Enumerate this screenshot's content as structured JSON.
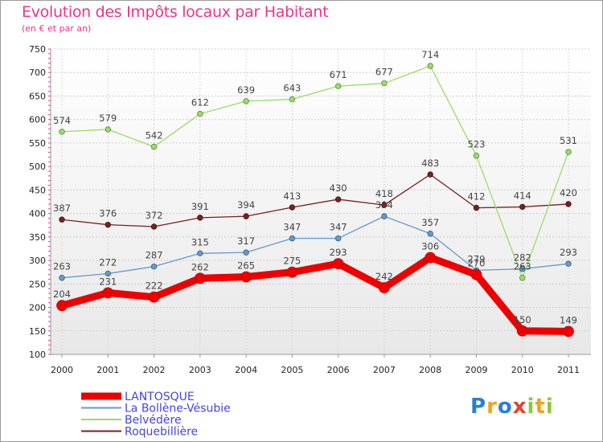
{
  "title": "Evolution des Impôts locaux par Habitant",
  "subtitle": "(en € et par an)",
  "logo": [
    "P",
    "r",
    "o",
    "x",
    "i",
    "t",
    "i"
  ],
  "chart_data": {
    "type": "line",
    "title": "Evolution des Impôts locaux par Habitant",
    "subtitle": "(en € et par an)",
    "xlabel": "",
    "ylabel": "",
    "ylim": [
      100,
      750
    ],
    "yticks": [
      100,
      150,
      200,
      250,
      300,
      350,
      400,
      450,
      500,
      550,
      600,
      650,
      700,
      750
    ],
    "grid": true,
    "legend_position": "bottom-left",
    "categories": [
      "2000",
      "2001",
      "2002",
      "2003",
      "2004",
      "2005",
      "2006",
      "2007",
      "2008",
      "2009",
      "2010",
      "2011"
    ],
    "series": [
      {
        "name": "Roquebillière",
        "color": "#7a1f1f",
        "values": [
          387,
          376,
          372,
          391,
          394,
          413,
          430,
          418,
          483,
          412,
          414,
          420
        ]
      },
      {
        "name": "Belvédère",
        "color": "#99dd66",
        "values": [
          574,
          579,
          542,
          612,
          639,
          643,
          671,
          677,
          714,
          523,
          263,
          531
        ]
      },
      {
        "name": "La Bollène-Vésubie",
        "color": "#6699cc",
        "values": [
          263,
          272,
          287,
          315,
          317,
          347,
          347,
          394,
          357,
          279,
          282,
          293
        ]
      },
      {
        "name": "LANTOSQUE",
        "color": "#ee0000",
        "values": [
          204,
          231,
          222,
          262,
          265,
          275,
          293,
          242,
          306,
          270,
          150,
          149
        ]
      }
    ],
    "legend_order": [
      "LANTOSQUE",
      "La Bollène-Vésubie",
      "Belvédère",
      "Roquebillière"
    ]
  }
}
